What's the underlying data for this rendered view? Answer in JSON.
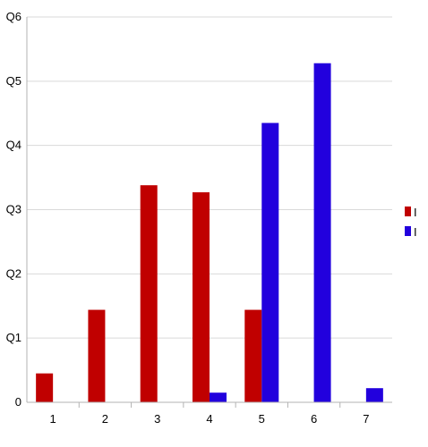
{
  "chart_data": {
    "type": "bar",
    "title": "",
    "xlabel": "",
    "ylabel": "",
    "categories": [
      "1",
      "2",
      "3",
      "4",
      "5",
      "6",
      "7"
    ],
    "series": [
      {
        "name": "I",
        "color": "#c00000",
        "values": [
          0.045,
          0.144,
          0.338,
          0.327,
          0.144,
          0,
          0
        ]
      },
      {
        "name": "I",
        "color": "#2200dd",
        "values": [
          0,
          0,
          0,
          0.015,
          0.435,
          0.528,
          0.022
        ]
      }
    ],
    "ylim": [
      0,
      0.6
    ],
    "yticks": [
      0,
      0.1,
      0.2,
      0.3,
      0.4,
      0.5,
      0.6
    ],
    "ytick_labels": [
      "0",
      "Q1",
      "Q2",
      "Q3",
      "Q4",
      "Q5",
      "Q6"
    ],
    "grid": true,
    "legend_position": "right"
  }
}
